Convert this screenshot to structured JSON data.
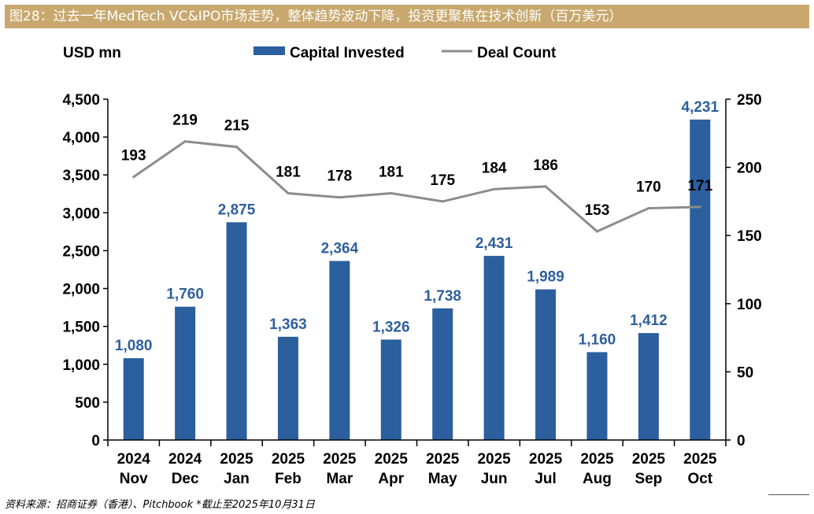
{
  "title": "图28：过去一年MedTech VC&IPO市场走势，整体趋势波动下降，投资更聚焦在技术创新（百万美元）",
  "footer": "资料来源：招商证券（香港）、Pitchbook  *截止至2025年10月31日",
  "chart_data": {
    "type": "bar",
    "title": "",
    "ylabel": "USD mn",
    "ylim": [
      0,
      4500
    ],
    "y_ticks": [
      "0",
      "500",
      "1,000",
      "1,500",
      "2,000",
      "2,500",
      "3,000",
      "3,500",
      "4,000",
      "4,500"
    ],
    "y2lim": [
      0,
      250
    ],
    "y2_ticks": [
      "0",
      "50",
      "100",
      "150",
      "200",
      "250"
    ],
    "categories": [
      {
        "year": "2024",
        "month": "Nov"
      },
      {
        "year": "2024",
        "month": "Dec"
      },
      {
        "year": "2025",
        "month": "Jan"
      },
      {
        "year": "2025",
        "month": "Feb"
      },
      {
        "year": "2025",
        "month": "Mar"
      },
      {
        "year": "2025",
        "month": "Apr"
      },
      {
        "year": "2025",
        "month": "May"
      },
      {
        "year": "2025",
        "month": "Jun"
      },
      {
        "year": "2025",
        "month": "Jul"
      },
      {
        "year": "2025",
        "month": "Aug"
      },
      {
        "year": "2025",
        "month": "Sep"
      },
      {
        "year": "2025",
        "month": "Oct"
      }
    ],
    "series": [
      {
        "name": "Capital Invested",
        "kind": "bar",
        "axis": "left",
        "color": "#2b5f9e",
        "values": [
          1080,
          1760,
          2875,
          1363,
          2364,
          1326,
          1738,
          2431,
          1989,
          1160,
          1412,
          4231
        ],
        "labels": [
          "1,080",
          "1,760",
          "2,875",
          "1,363",
          "2,364",
          "1,326",
          "1,738",
          "2,431",
          "1,989",
          "1,160",
          "1,412",
          "4,231"
        ]
      },
      {
        "name": "Deal Count",
        "kind": "line",
        "axis": "right",
        "color": "#8c8c8c",
        "values": [
          193,
          219,
          215,
          181,
          178,
          181,
          175,
          184,
          186,
          153,
          170,
          171
        ],
        "labels": [
          "193",
          "219",
          "215",
          "181",
          "178",
          "181",
          "175",
          "184",
          "186",
          "153",
          "170",
          "171"
        ]
      }
    ],
    "legend": "top"
  }
}
